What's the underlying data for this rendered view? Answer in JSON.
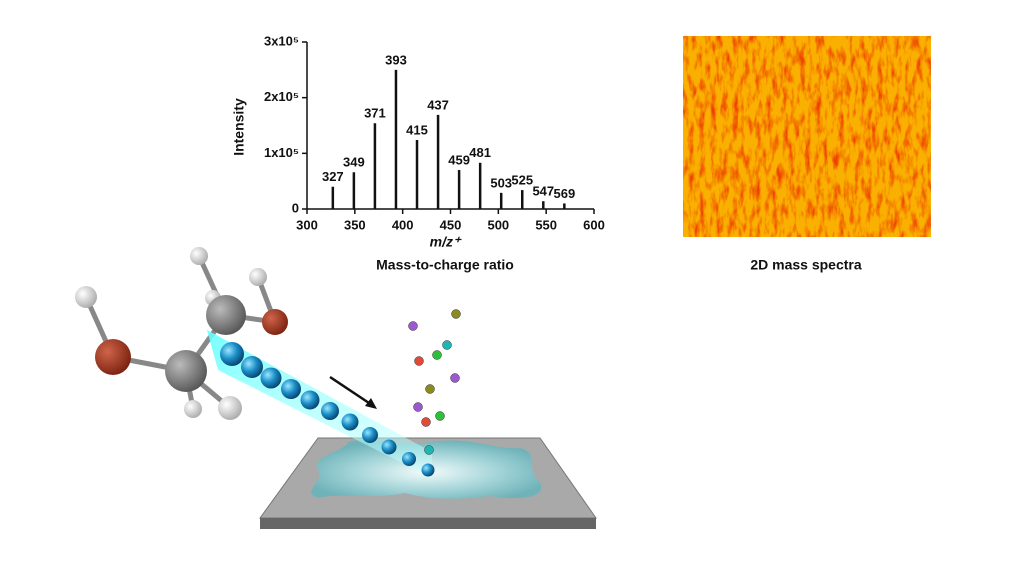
{
  "chart_data": {
    "type": "stick",
    "xlabel": "m/z⁺",
    "ylabel": "Intensity",
    "caption": "Mass-to-charge ratio",
    "x": [
      327,
      349,
      371,
      393,
      415,
      437,
      459,
      481,
      503,
      525,
      547,
      569
    ],
    "values": [
      40000,
      66000,
      154000,
      250000,
      124000,
      169000,
      70000,
      83000,
      29000,
      34000,
      14000,
      10000
    ],
    "color": "#111111",
    "xlim": [
      300,
      600
    ],
    "xticks": [
      300,
      350,
      400,
      450,
      500,
      550,
      600
    ],
    "ylim": [
      0,
      300000
    ],
    "yticks": [
      0,
      {
        "value": 100000,
        "label": "1x10⁵"
      },
      {
        "value": 200000,
        "label": "2x10⁵"
      },
      {
        "value": 300000,
        "label": "3x10⁵"
      }
    ]
  },
  "heatmap": {
    "caption": "2D mass spectra"
  }
}
